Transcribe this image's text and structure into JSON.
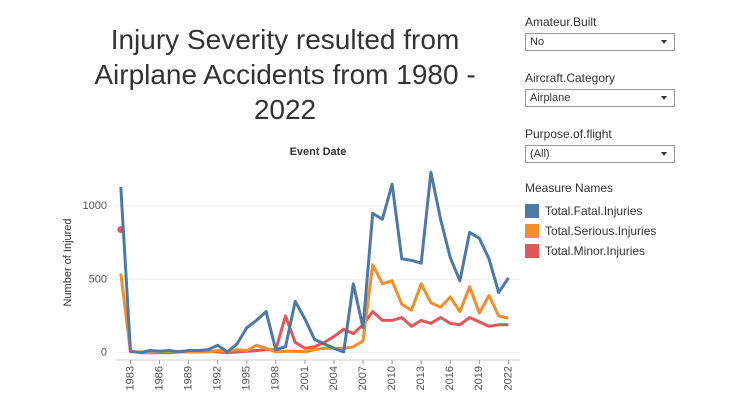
{
  "chart_data": {
    "type": "line",
    "title": "Injury Severity resulted from Airplane Accidents from 1980 - 2022",
    "header": "Event Date",
    "ylabel": "Number of Injured",
    "legend_title": "Measure Names",
    "x": [
      1982,
      1983,
      1984,
      1985,
      1986,
      1987,
      1988,
      1989,
      1990,
      1991,
      1992,
      1993,
      1994,
      1995,
      1996,
      1997,
      1998,
      1999,
      2000,
      2001,
      2002,
      2003,
      2004,
      2005,
      2006,
      2007,
      2008,
      2009,
      2010,
      2011,
      2012,
      2013,
      2014,
      2015,
      2016,
      2017,
      2018,
      2019,
      2020,
      2021,
      2022
    ],
    "series": [
      {
        "name": "Total.Fatal.Injuries",
        "color": "#4e79a7",
        "values": [
          1130,
          10,
          0,
          15,
          10,
          15,
          5,
          15,
          15,
          20,
          50,
          5,
          60,
          170,
          220,
          280,
          20,
          40,
          350,
          230,
          90,
          60,
          30,
          5,
          470,
          170,
          950,
          910,
          1150,
          640,
          630,
          610,
          1230,
          910,
          650,
          490,
          820,
          780,
          640,
          410,
          510
        ]
      },
      {
        "name": "Total.Serious.Injuries",
        "color": "#f28e2b",
        "values": [
          540,
          5,
          5,
          0,
          5,
          5,
          10,
          5,
          5,
          5,
          15,
          10,
          20,
          15,
          50,
          30,
          5,
          10,
          10,
          5,
          20,
          30,
          30,
          30,
          40,
          80,
          600,
          470,
          490,
          330,
          290,
          470,
          340,
          310,
          380,
          280,
          450,
          270,
          390,
          250,
          235
        ]
      },
      {
        "name": "Total.Minor.Injuries",
        "color": "#e15759",
        "values": [
          840,
          null,
          0,
          0,
          0,
          0,
          5,
          5,
          5,
          10,
          5,
          0,
          5,
          10,
          15,
          20,
          20,
          250,
          70,
          30,
          40,
          70,
          110,
          160,
          130,
          190,
          280,
          220,
          220,
          240,
          180,
          220,
          200,
          240,
          200,
          190,
          240,
          210,
          180,
          190,
          190
        ]
      }
    ],
    "xlim": [
      1981.4,
      2023.2
    ],
    "xticks": [
      1983,
      1986,
      1989,
      1992,
      1995,
      1998,
      2001,
      2004,
      2007,
      2010,
      2013,
      2016,
      2019,
      2022
    ],
    "ylim": [
      -50,
      1280
    ],
    "yticks": [
      0,
      500,
      1000
    ],
    "grid": true
  },
  "filters": [
    {
      "label": "Amateur.Built",
      "value": "No"
    },
    {
      "label": "Aircraft.Category",
      "value": "Airplane"
    },
    {
      "label": "Purpose.of.flight",
      "value": "(All)"
    }
  ]
}
